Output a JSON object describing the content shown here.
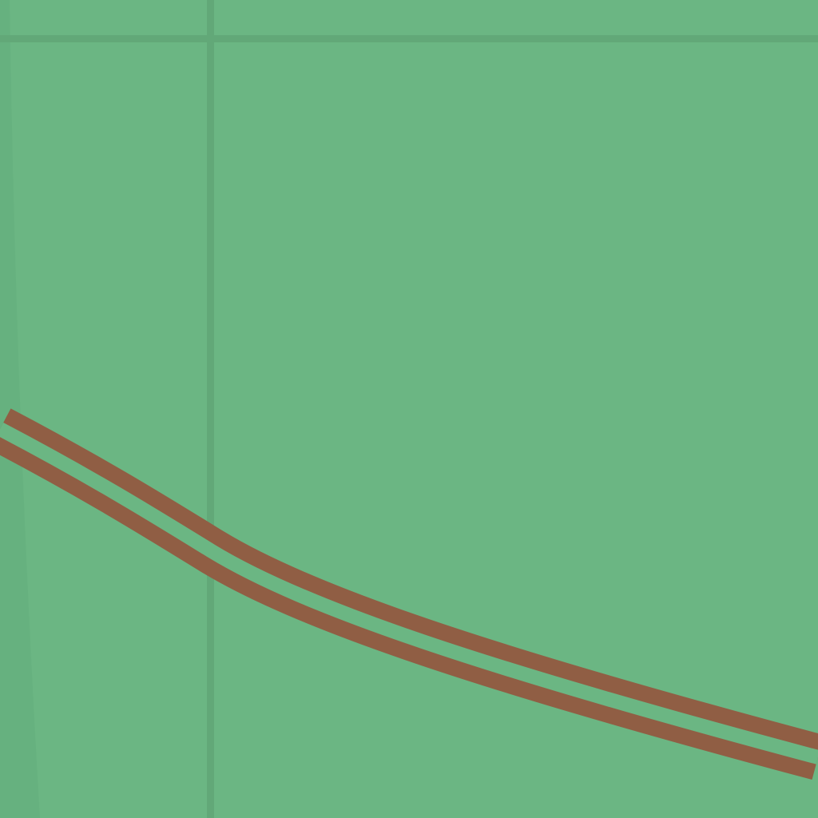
{
  "map": {
    "colors": {
      "land": "#6bb683",
      "grid_line": "#62a878",
      "edge_shade": "#66b07e",
      "road_casing": "#905e44",
      "road_fill": "#6bb683"
    },
    "features": [
      {
        "kind": "grid-line",
        "orientation": "horizontal"
      },
      {
        "kind": "grid-line",
        "orientation": "vertical"
      },
      {
        "kind": "road",
        "style": "double-line"
      }
    ]
  }
}
